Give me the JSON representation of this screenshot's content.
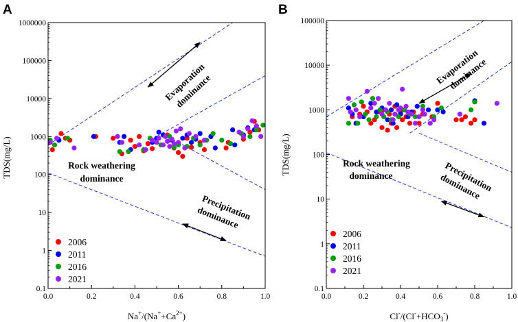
{
  "chart_data": [
    {
      "type": "scatter",
      "panel_label": "A",
      "xlabel_parts": {
        "main": "Na",
        "sup1": "+",
        "mid": "/(Na",
        "sup2": "+",
        "mid2": "+Ca",
        "sup3": "2+",
        "end": ")"
      },
      "xlabel_plain": "Na+/(Na++Ca2+)",
      "ylabel": "TDS(mg/L)",
      "xlim": [
        0.0,
        1.0
      ],
      "ylim": [
        0.1,
        1000000
      ],
      "yscale": "log",
      "x_ticks": [
        "0.0",
        "0.2",
        "0.4",
        "0.6",
        "0.8",
        "1.0"
      ],
      "y_ticks": [
        "0.1",
        "1",
        "10",
        "100",
        "1000",
        "10000",
        "100000",
        "1000000"
      ],
      "annotations": [
        {
          "lines": [
            "Evaporation",
            "dominance"
          ],
          "region": "upper"
        },
        {
          "lines": [
            "Rock weathering",
            "dominance"
          ],
          "region": "middle-left"
        },
        {
          "lines": [
            "Precipitation",
            "dominance"
          ],
          "region": "lower-right"
        }
      ],
      "boundary_lines": [
        {
          "points": [
            [
              0.0,
              600
            ],
            [
              0.85,
              1000000
            ]
          ]
        },
        {
          "points": [
            [
              0.5,
              1000
            ],
            [
              1.0,
              40000
            ]
          ]
        },
        {
          "points": [
            [
              0.55,
              1000
            ],
            [
              1.0,
              40
            ]
          ]
        },
        {
          "points": [
            [
              0.0,
              110
            ],
            [
              1.0,
              0.7
            ]
          ]
        }
      ],
      "arrows": [
        {
          "from": [
            0.46,
            20000
          ],
          "to": [
            0.7,
            300000
          ]
        },
        {
          "from": [
            0.62,
            5
          ],
          "to": [
            0.82,
            1.8
          ]
        }
      ],
      "series": [
        {
          "name": "2006",
          "color": "#ff0000",
          "points": [
            [
              0.02,
              450
            ],
            [
              0.06,
              1200
            ],
            [
              0.08,
              900
            ],
            [
              0.1,
              800
            ],
            [
              0.22,
              1000
            ],
            [
              0.3,
              900
            ],
            [
              0.34,
              350
            ],
            [
              0.38,
              800
            ],
            [
              0.4,
              550
            ],
            [
              0.42,
              1000
            ],
            [
              0.44,
              420
            ],
            [
              0.46,
              650
            ],
            [
              0.48,
              480
            ],
            [
              0.52,
              600
            ],
            [
              0.55,
              1100
            ],
            [
              0.58,
              500
            ],
            [
              0.6,
              380
            ],
            [
              0.62,
              300
            ],
            [
              0.64,
              900
            ],
            [
              0.66,
              520
            ],
            [
              0.7,
              700
            ],
            [
              0.72,
              450
            ],
            [
              0.75,
              1000
            ],
            [
              0.82,
              500
            ],
            [
              0.83,
              700
            ],
            [
              0.9,
              850
            ],
            [
              0.93,
              1300
            ],
            [
              0.95,
              2500
            ],
            [
              0.97,
              1500
            ]
          ]
        },
        {
          "name": "2011",
          "color": "#0000ff",
          "points": [
            [
              0.05,
              800
            ],
            [
              0.21,
              1000
            ],
            [
              0.33,
              700
            ],
            [
              0.35,
              1000
            ],
            [
              0.38,
              450
            ],
            [
              0.48,
              700
            ],
            [
              0.5,
              900
            ],
            [
              0.51,
              1300
            ],
            [
              0.53,
              1100
            ],
            [
              0.55,
              750
            ],
            [
              0.57,
              800
            ],
            [
              0.6,
              650
            ],
            [
              0.62,
              900
            ],
            [
              0.64,
              1100
            ],
            [
              0.66,
              700
            ],
            [
              0.68,
              850
            ],
            [
              0.7,
              1200
            ],
            [
              0.75,
              1000
            ],
            [
              0.77,
              500
            ],
            [
              0.85,
              1500
            ],
            [
              0.86,
              600
            ],
            [
              0.9,
              1100
            ],
            [
              0.92,
              1700
            ],
            [
              0.95,
              1500
            ]
          ]
        },
        {
          "name": "2016",
          "color": "#00a000",
          "points": [
            [
              0.01,
              800
            ],
            [
              0.03,
              600
            ],
            [
              0.09,
              900
            ],
            [
              0.33,
              400
            ],
            [
              0.37,
              400
            ],
            [
              0.44,
              450
            ],
            [
              0.47,
              900
            ],
            [
              0.52,
              600
            ],
            [
              0.56,
              1000
            ],
            [
              0.58,
              520
            ],
            [
              0.6,
              600
            ],
            [
              0.64,
              550
            ],
            [
              0.67,
              900
            ],
            [
              0.7,
              600
            ],
            [
              0.73,
              800
            ],
            [
              0.76,
              1200
            ],
            [
              0.8,
              800
            ],
            [
              0.84,
              650
            ],
            [
              0.89,
              1200
            ],
            [
              0.93,
              1000
            ],
            [
              0.96,
              1500
            ],
            [
              0.99,
              2000
            ]
          ]
        },
        {
          "name": "2021",
          "color": "#9b1fff",
          "points": [
            [
              0.01,
              700
            ],
            [
              0.04,
              900
            ],
            [
              0.12,
              500
            ],
            [
              0.32,
              1000
            ],
            [
              0.34,
              700
            ],
            [
              0.42,
              600
            ],
            [
              0.45,
              450
            ],
            [
              0.48,
              800
            ],
            [
              0.5,
              700
            ],
            [
              0.51,
              900
            ],
            [
              0.53,
              600
            ],
            [
              0.54,
              1000
            ],
            [
              0.55,
              750
            ],
            [
              0.56,
              550
            ],
            [
              0.57,
              850
            ],
            [
              0.58,
              650
            ],
            [
              0.59,
              1400
            ],
            [
              0.6,
              700
            ],
            [
              0.61,
              1600
            ],
            [
              0.63,
              500
            ],
            [
              0.65,
              1200
            ],
            [
              0.68,
              1000
            ],
            [
              0.72,
              800
            ],
            [
              0.88,
              1300
            ],
            [
              0.9,
              1000
            ],
            [
              0.92,
              1600
            ],
            [
              0.94,
              2600
            ],
            [
              0.96,
              1900
            ],
            [
              0.98,
              1000
            ]
          ]
        }
      ],
      "legend": [
        "2006",
        "2011",
        "2016",
        "2021"
      ],
      "legend_position": "bottom-left"
    },
    {
      "type": "scatter",
      "panel_label": "B",
      "xlabel_parts": {
        "main": "Cl",
        "sup1": "-",
        "mid": "/(Cl",
        "sup2": "-",
        "mid2": "+HCO",
        "sub3": "3",
        "sup3": "-",
        "end": ")"
      },
      "xlabel_plain": "Cl-/(Cl-+HCO3-)",
      "ylabel": "TDS(mg/L)",
      "xlim": [
        0.0,
        1.0
      ],
      "ylim": [
        0.1,
        100000
      ],
      "yscale": "log",
      "x_ticks": [
        "0.0",
        "0.2",
        "0.4",
        "0.6",
        "0.8",
        "1.0"
      ],
      "y_ticks": [
        "0.1",
        "1",
        "10",
        "100",
        "1000",
        "10000",
        "100000"
      ],
      "annotations": [
        {
          "lines": [
            "Evaporation",
            "dominance"
          ],
          "region": "upper"
        },
        {
          "lines": [
            "Rock weathering",
            "dominance"
          ],
          "region": "middle-left"
        },
        {
          "lines": [
            "Precipitation",
            "dominance"
          ],
          "region": "lower-right"
        }
      ],
      "boundary_lines": [
        {
          "points": [
            [
              0.0,
              700
            ],
            [
              0.85,
              100000
            ]
          ]
        },
        {
          "points": [
            [
              0.45,
              300
            ],
            [
              1.0,
              12000
            ]
          ]
        },
        {
          "points": [
            [
              0.5,
              300
            ],
            [
              1.0,
              40
            ]
          ]
        },
        {
          "points": [
            [
              0.0,
              110
            ],
            [
              1.0,
              2.3
            ]
          ]
        }
      ],
      "arrows": [
        {
          "from": [
            0.5,
            1400
          ],
          "to": [
            0.78,
            6500
          ]
        },
        {
          "from": [
            0.62,
            9
          ],
          "to": [
            0.85,
            4
          ]
        }
      ],
      "series": [
        {
          "name": "2006",
          "color": "#ff0000",
          "points": [
            [
              0.14,
              700
            ],
            [
              0.18,
              800
            ],
            [
              0.2,
              1200
            ],
            [
              0.22,
              900
            ],
            [
              0.24,
              500
            ],
            [
              0.26,
              600
            ],
            [
              0.28,
              900
            ],
            [
              0.3,
              400
            ],
            [
              0.31,
              1000
            ],
            [
              0.33,
              350
            ],
            [
              0.34,
              800
            ],
            [
              0.35,
              500
            ],
            [
              0.37,
              1200
            ],
            [
              0.38,
              400
            ],
            [
              0.4,
              900
            ],
            [
              0.41,
              600
            ],
            [
              0.43,
              700
            ],
            [
              0.45,
              500
            ],
            [
              0.47,
              900
            ],
            [
              0.5,
              500
            ],
            [
              0.52,
              800
            ],
            [
              0.57,
              700
            ],
            [
              0.6,
              1400
            ],
            [
              0.7,
              600
            ],
            [
              0.73,
              600
            ],
            [
              0.75,
              700
            ],
            [
              0.78,
              500
            ],
            [
              0.8,
              600
            ]
          ]
        },
        {
          "name": "2011",
          "color": "#0000ff",
          "points": [
            [
              0.12,
              1100
            ],
            [
              0.14,
              800
            ],
            [
              0.16,
              500
            ],
            [
              0.2,
              700
            ],
            [
              0.24,
              1400
            ],
            [
              0.27,
              900
            ],
            [
              0.3,
              1100
            ],
            [
              0.33,
              600
            ],
            [
              0.35,
              1000
            ],
            [
              0.36,
              500
            ],
            [
              0.38,
              1300
            ],
            [
              0.4,
              800
            ],
            [
              0.42,
              1000
            ],
            [
              0.44,
              700
            ],
            [
              0.46,
              900
            ],
            [
              0.49,
              1200
            ],
            [
              0.55,
              1000
            ],
            [
              0.6,
              1000
            ],
            [
              0.63,
              900
            ],
            [
              0.8,
              1600
            ],
            [
              0.85,
              500
            ]
          ]
        },
        {
          "name": "2016",
          "color": "#00a000",
          "points": [
            [
              0.12,
              500
            ],
            [
              0.15,
              1300
            ],
            [
              0.17,
              500
            ],
            [
              0.19,
              1500
            ],
            [
              0.21,
              800
            ],
            [
              0.23,
              600
            ],
            [
              0.25,
              1800
            ],
            [
              0.27,
              700
            ],
            [
              0.29,
              1000
            ],
            [
              0.31,
              700
            ],
            [
              0.33,
              900
            ],
            [
              0.35,
              600
            ],
            [
              0.37,
              800
            ],
            [
              0.39,
              700
            ],
            [
              0.42,
              1000
            ],
            [
              0.45,
              800
            ],
            [
              0.48,
              700
            ],
            [
              0.52,
              1200
            ],
            [
              0.58,
              700
            ],
            [
              0.62,
              1100
            ],
            [
              0.78,
              1000
            ],
            [
              0.8,
              1500
            ]
          ]
        },
        {
          "name": "2021",
          "color": "#9b1fff",
          "points": [
            [
              0.12,
              1800
            ],
            [
              0.13,
              900
            ],
            [
              0.16,
              1000
            ],
            [
              0.18,
              700
            ],
            [
              0.22,
              2600
            ],
            [
              0.24,
              1100
            ],
            [
              0.26,
              1400
            ],
            [
              0.28,
              1800
            ],
            [
              0.3,
              800
            ],
            [
              0.32,
              1000
            ],
            [
              0.34,
              1400
            ],
            [
              0.36,
              600
            ],
            [
              0.37,
              800
            ],
            [
              0.39,
              1000
            ],
            [
              0.4,
              1100
            ],
            [
              0.41,
              2900
            ],
            [
              0.43,
              1200
            ],
            [
              0.44,
              900
            ],
            [
              0.46,
              800
            ],
            [
              0.48,
              500
            ],
            [
              0.5,
              700
            ],
            [
              0.52,
              1000
            ],
            [
              0.53,
              800
            ],
            [
              0.56,
              500
            ],
            [
              0.58,
              600
            ],
            [
              0.72,
              800
            ],
            [
              0.92,
              1400
            ]
          ]
        }
      ],
      "legend": [
        "2006",
        "2011",
        "2016",
        "2021"
      ],
      "legend_position": "bottom-left"
    }
  ]
}
